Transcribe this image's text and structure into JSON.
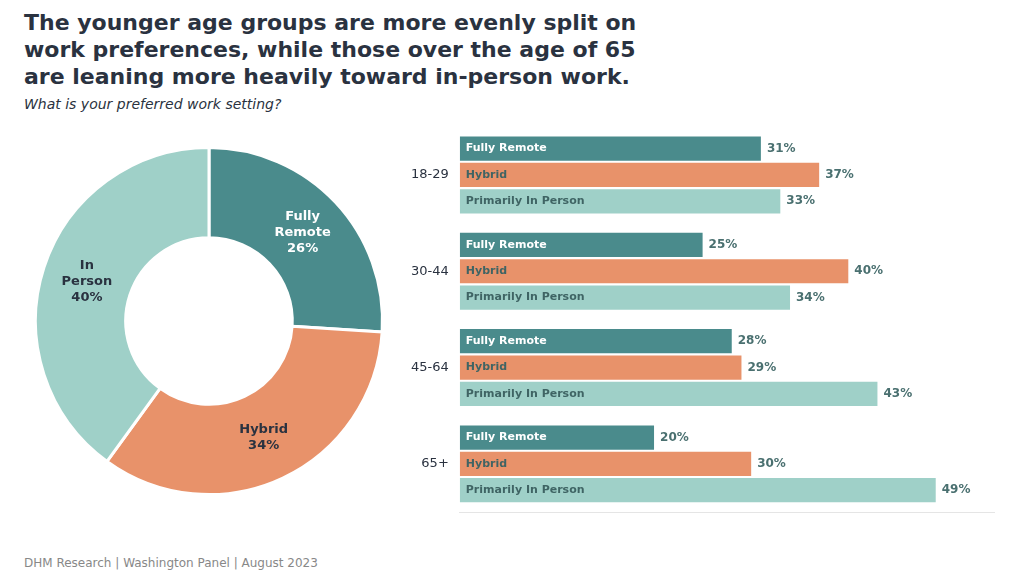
{
  "chart_data": [
    {
      "type": "doughnut",
      "title": "The younger age groups are more evenly split on\nwork preferences, while those over the age of 65\nare leaning more heavily toward in-person work.",
      "subtitle": "What is your preferred work setting?",
      "annotations": [
        "DHM Research | Washington Panel | August 2023"
      ],
      "categories": [
        "Fully Remote",
        "Hybrid",
        "In Person"
      ],
      "values": [
        26,
        34,
        40
      ],
      "value_labels": [
        "26%",
        "34%",
        "40%"
      ],
      "colors": [
        "#4a8b8c",
        "#e8926a",
        "#9fd0c8"
      ],
      "data_labels": true
    },
    {
      "type": "bar",
      "orientation": "horizontal",
      "categories": [
        "18-29",
        "30-44",
        "45-64",
        "65+"
      ],
      "series": [
        {
          "name": "Fully Remote",
          "color": "#4a8b8c",
          "values": [
            31,
            25,
            28,
            20
          ],
          "value_labels": [
            "31%",
            "25%",
            "28%",
            "20%"
          ]
        },
        {
          "name": "Hybrid",
          "color": "#e8926a",
          "values": [
            37,
            40,
            29,
            30
          ],
          "value_labels": [
            "37%",
            "40%",
            "29%",
            "30%"
          ]
        },
        {
          "name": "Primarily In Person",
          "color": "#9fd0c8",
          "values": [
            33,
            34,
            43,
            49
          ],
          "value_labels": [
            "33%",
            "34%",
            "43%",
            "49%"
          ]
        }
      ],
      "xlim": [
        0,
        55
      ],
      "grid": false,
      "tick_labels": "y",
      "data_labels": true
    }
  ]
}
